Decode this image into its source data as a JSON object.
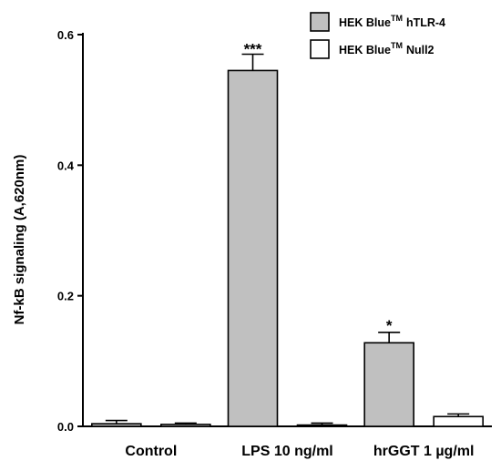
{
  "chart_data": {
    "type": "bar",
    "ylabel": "Nf-kB signaling (A,620nm)",
    "ylim": [
      0,
      0.6
    ],
    "yticks": [
      "0.0",
      "0.2",
      "0.4",
      "0.6"
    ],
    "categories": [
      "Control",
      "LPS 10 ng/ml",
      "hrGGT 1 µg/ml"
    ],
    "series": [
      {
        "name_main": "HEK Blue",
        "name_sup": "TM",
        "name_suffix": "hTLR-4",
        "color": "#c0c0c0",
        "values": [
          0.004,
          0.545,
          0.128
        ],
        "errors": [
          0.005,
          0.025,
          0.016
        ],
        "significance": [
          "",
          "***",
          "*"
        ]
      },
      {
        "name_main": "HEK Blue",
        "name_sup": "TM",
        "name_suffix": "Null2",
        "color": "#ffffff",
        "values": [
          0.003,
          0.002,
          0.015
        ],
        "errors": [
          0.002,
          0.003,
          0.004
        ],
        "significance": [
          "",
          "",
          ""
        ]
      }
    ],
    "legend_position": "top-right",
    "grid": false
  }
}
